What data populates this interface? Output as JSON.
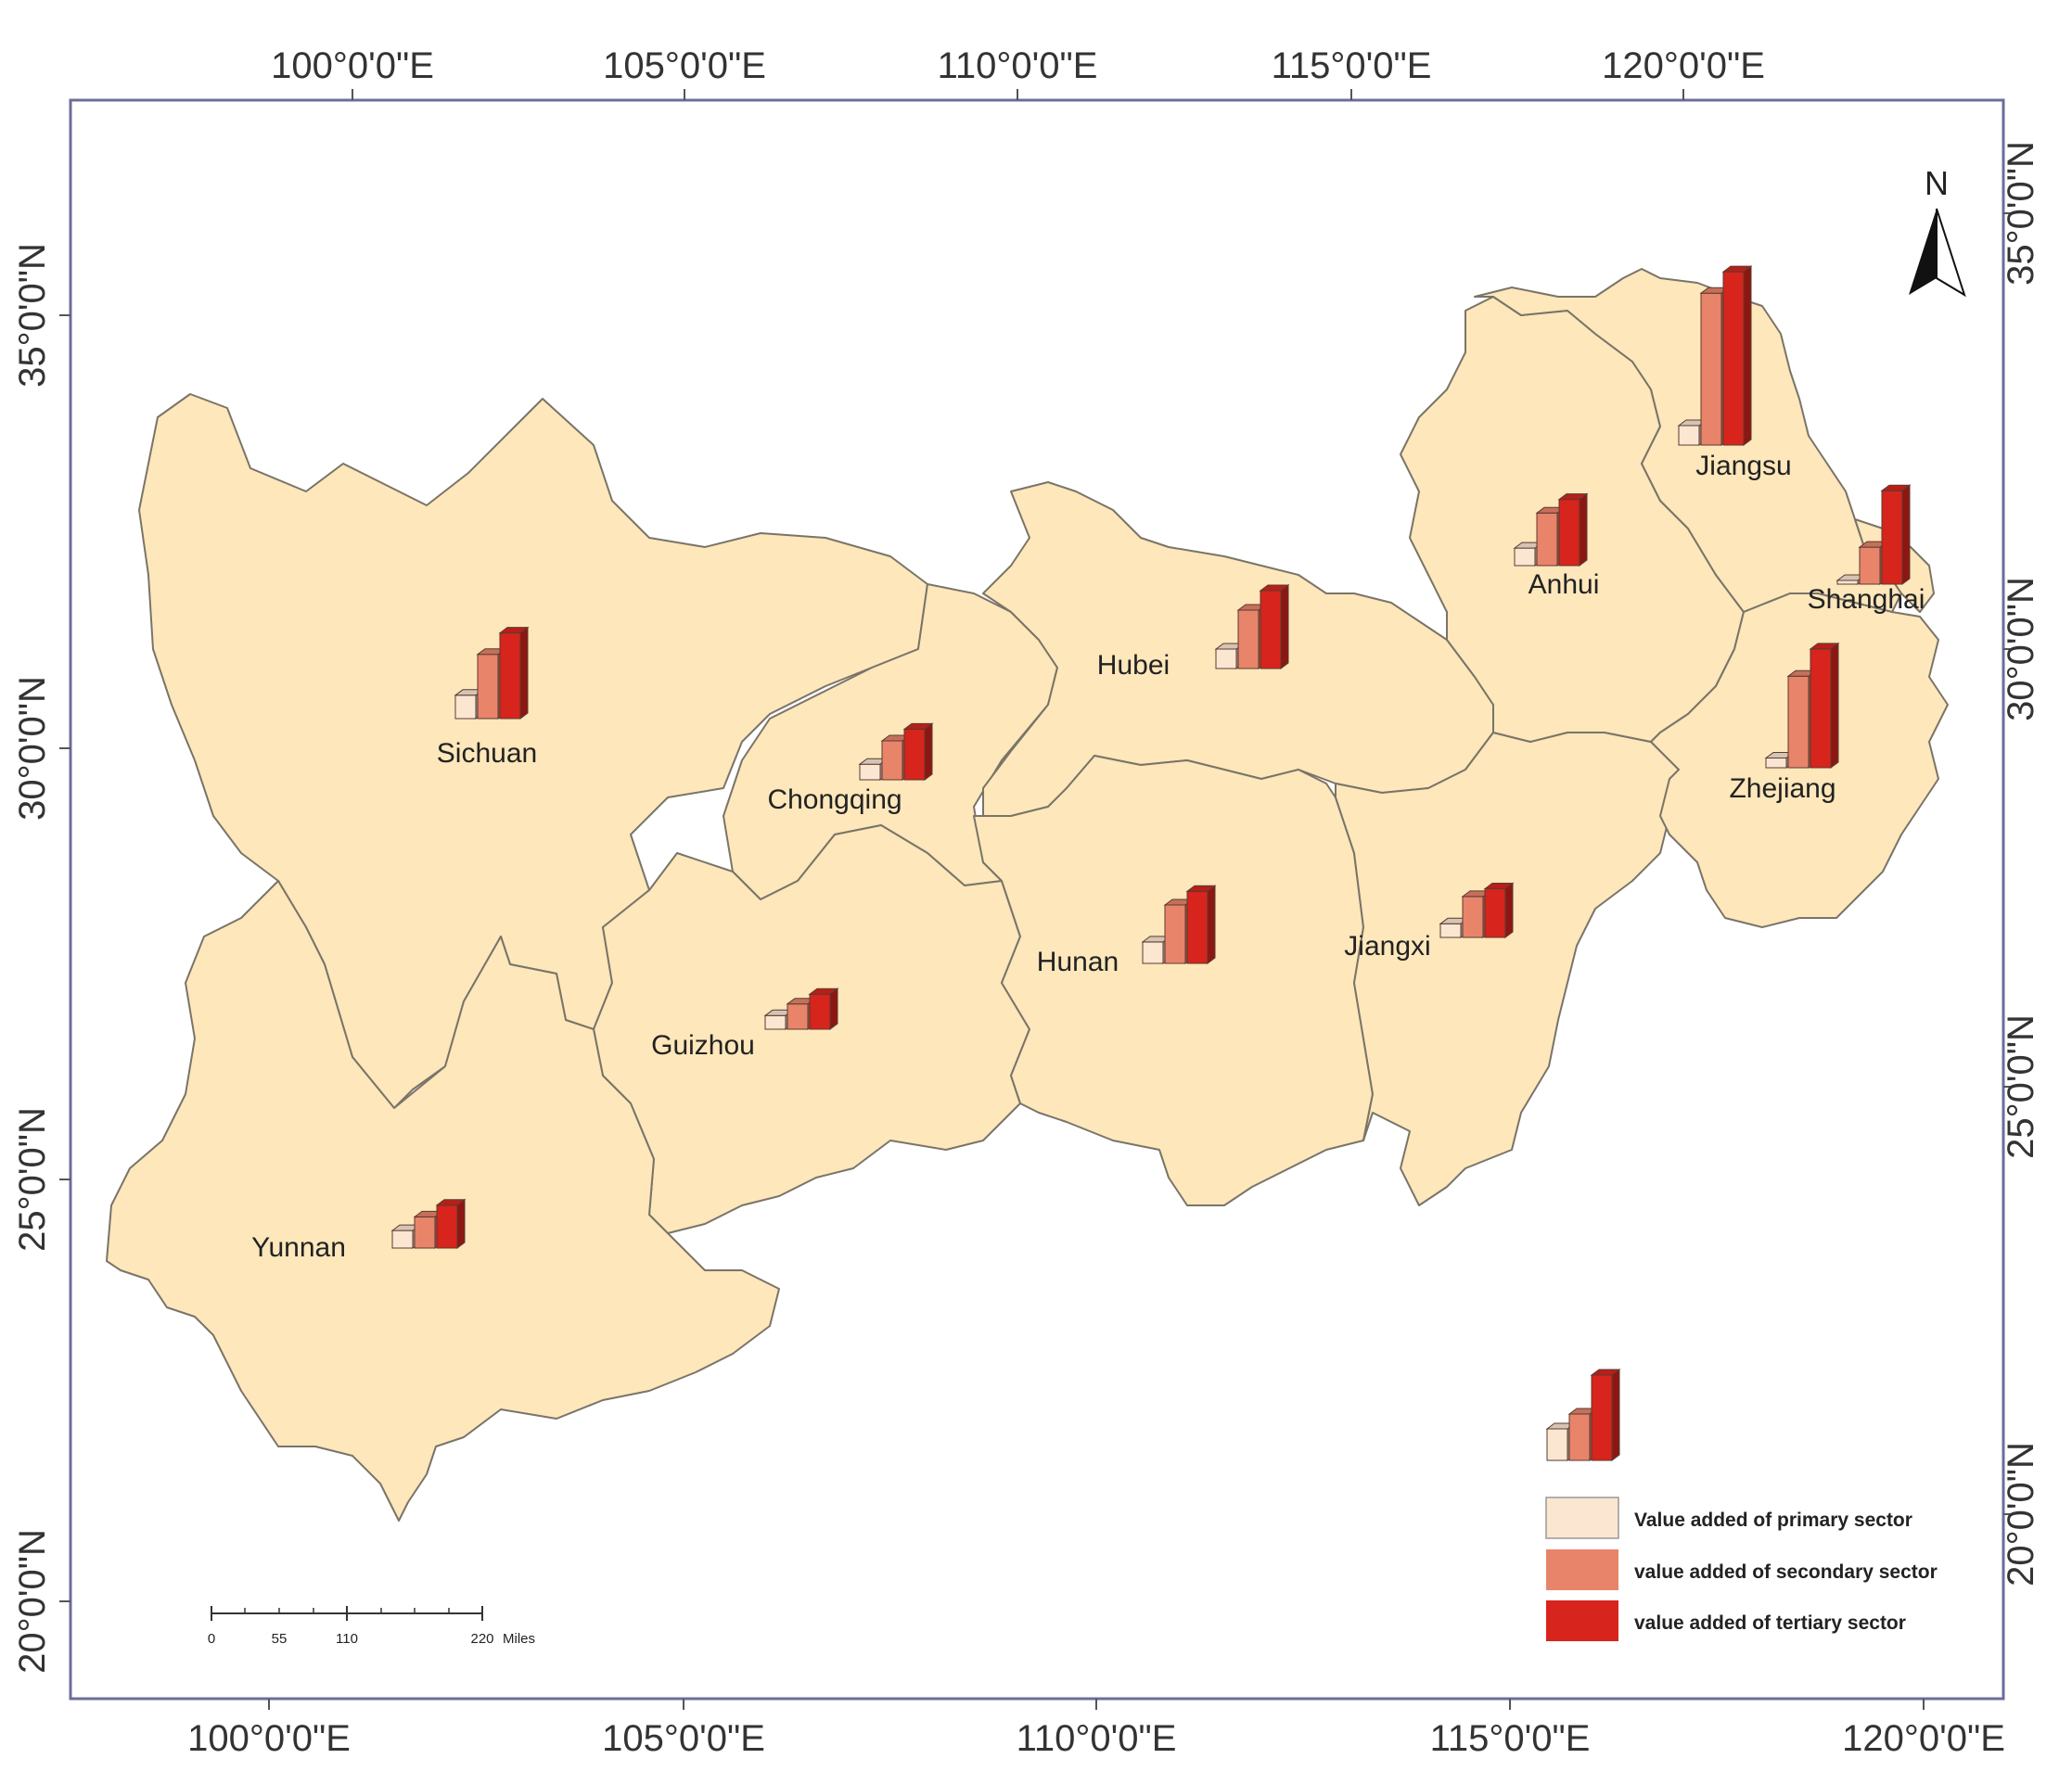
{
  "map": {
    "colors": {
      "land": "#fde7bb",
      "border": "#7a7468",
      "frame": "#6d6d9a",
      "primary": "#fbe6d2",
      "secondary": "#e8846a",
      "tertiary": "#d7241c"
    },
    "graticule": {
      "top_lon": [
        "100°0'0\"E",
        "105°0'0\"E",
        "110°0'0\"E",
        "115°0'0\"E",
        "120°0'0\"E"
      ],
      "bottom_lon": [
        "100°0'0\"E",
        "105°0'0\"E",
        "110°0'0\"E",
        "115°0'0\"E",
        "120°0'0\"E"
      ],
      "left_lat": [
        "35°0'0\"N",
        "30°0'0\"N",
        "25°0'0\"N",
        "20°0'0\"N"
      ],
      "right_lat": [
        "35°0'0\"N",
        "30°0'0\"N",
        "25°0'0\"N",
        "20°0'0\"N"
      ]
    },
    "north_arrow": {
      "label": "N",
      "icon": "north-arrow-icon"
    },
    "provinces": [
      {
        "name": "Sichuan",
        "primary": 12,
        "secondary": 33,
        "tertiary": 44
      },
      {
        "name": "Chongqing",
        "primary": 8,
        "secondary": 20,
        "tertiary": 26
      },
      {
        "name": "Guizhou",
        "primary": 7,
        "secondary": 13,
        "tertiary": 18
      },
      {
        "name": "Yunnan",
        "primary": 9,
        "secondary": 16,
        "tertiary": 22
      },
      {
        "name": "Hubei",
        "primary": 10,
        "secondary": 30,
        "tertiary": 40
      },
      {
        "name": "Hunan",
        "primary": 11,
        "secondary": 30,
        "tertiary": 37
      },
      {
        "name": "Jiangxi",
        "primary": 7,
        "secondary": 21,
        "tertiary": 25
      },
      {
        "name": "Anhui",
        "primary": 9,
        "secondary": 27,
        "tertiary": 34
      },
      {
        "name": "Jiangsu",
        "primary": 10,
        "secondary": 78,
        "tertiary": 89
      },
      {
        "name": "Zhejiang",
        "primary": 5,
        "secondary": 47,
        "tertiary": 61
      },
      {
        "name": "Shanghai",
        "primary": 1,
        "secondary": 19,
        "tertiary": 48
      }
    ],
    "legend": {
      "primary": "Value added of primary sector",
      "secondary": "value added of secondary sector",
      "tertiary": "value added of tertiary sector"
    },
    "scale_bar": {
      "ticks": [
        "0",
        "55",
        "110",
        "220"
      ],
      "unit": "Miles"
    }
  }
}
